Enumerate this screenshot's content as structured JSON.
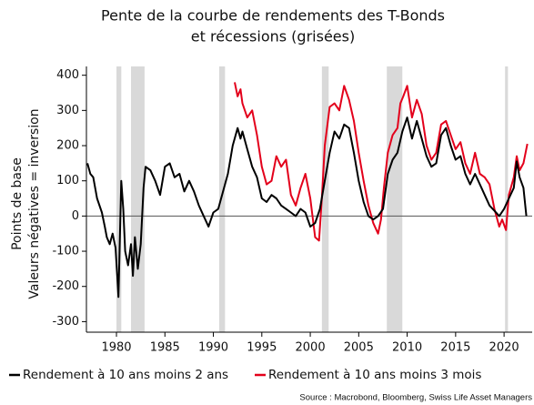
{
  "chart_data": {
    "type": "line",
    "title": [
      "Pente de la courbe de rendements des T-Bonds",
      "et récessions (grisées)"
    ],
    "y_label": [
      "Points de base",
      "Valeurs négatives = inversion"
    ],
    "source": "Source : Macrobond, Bloomberg, Swiss Life Asset Managers",
    "xlim": [
      1976.9,
      2022.9
    ],
    "xticks": [
      1980,
      1985,
      1990,
      1995,
      2000,
      2005,
      2010,
      2015,
      2020
    ],
    "ylim": [
      -330,
      425
    ],
    "yticks": [
      -300,
      -200,
      -100,
      0,
      100,
      200,
      300,
      400
    ],
    "legend": "bottom",
    "grid": false,
    "recessions": [
      [
        1980.0,
        1980.5
      ],
      [
        1981.5,
        1982.9
      ],
      [
        1990.6,
        1991.2
      ],
      [
        2001.2,
        2001.9
      ],
      [
        2007.9,
        2009.5
      ],
      [
        2020.1,
        2020.4
      ]
    ],
    "recession_color": "#d9d9d9",
    "series": [
      {
        "name": "Rendement à 10 ans moins 2 ans",
        "color": "#000000",
        "x": [
          1977,
          1977.3,
          1977.6,
          1978,
          1978.5,
          1978.8,
          1979,
          1979.3,
          1979.6,
          1979.9,
          1980.2,
          1980.5,
          1980.7,
          1980.9,
          1981.2,
          1981.5,
          1981.7,
          1981.9,
          1982.2,
          1982.5,
          1982.8,
          1983,
          1983.5,
          1984,
          1984.5,
          1985,
          1985.5,
          1986,
          1986.5,
          1987,
          1987.5,
          1988,
          1988.5,
          1989,
          1989.5,
          1990,
          1990.5,
          1991,
          1991.5,
          1992,
          1992.5,
          1992.8,
          1993,
          1993.5,
          1994,
          1994.5,
          1995,
          1995.5,
          1996,
          1996.5,
          1997,
          1997.5,
          1998,
          1998.5,
          1999,
          1999.5,
          2000,
          2000.5,
          2001,
          2001.5,
          2002,
          2002.5,
          2003,
          2003.5,
          2004,
          2004.5,
          2005,
          2005.5,
          2006,
          2006.5,
          2007,
          2007.5,
          2008,
          2008.5,
          2009,
          2009.5,
          2010,
          2010.5,
          2011,
          2011.5,
          2012,
          2012.5,
          2013,
          2013.5,
          2014,
          2014.5,
          2015,
          2015.5,
          2016,
          2016.5,
          2017,
          2017.5,
          2018,
          2018.5,
          2019,
          2019.5,
          2020,
          2020.5,
          2021,
          2021.3,
          2021.6,
          2022,
          2022.3
        ],
        "values": [
          150,
          120,
          110,
          50,
          10,
          -30,
          -60,
          -80,
          -50,
          -90,
          -230,
          100,
          20,
          -100,
          -140,
          -80,
          -170,
          -60,
          -150,
          -80,
          80,
          140,
          130,
          100,
          60,
          140,
          150,
          110,
          120,
          70,
          100,
          70,
          30,
          0,
          -30,
          10,
          20,
          70,
          120,
          200,
          250,
          220,
          240,
          190,
          140,
          110,
          50,
          40,
          60,
          50,
          30,
          20,
          10,
          0,
          20,
          10,
          -30,
          -20,
          20,
          100,
          180,
          240,
          220,
          260,
          250,
          180,
          100,
          40,
          0,
          -10,
          0,
          20,
          120,
          160,
          180,
          240,
          280,
          220,
          270,
          220,
          170,
          140,
          150,
          230,
          250,
          200,
          160,
          170,
          120,
          90,
          120,
          90,
          60,
          30,
          15,
          0,
          20,
          50,
          80,
          155,
          110,
          80,
          0
        ]
      },
      {
        "name": "Rendement à 10 ans moins 3 mois",
        "color": "#e3001b",
        "x": [
          1992.2,
          1992.5,
          1992.8,
          1993,
          1993.5,
          1994,
          1994.5,
          1995,
          1995.5,
          1996,
          1996.5,
          1997,
          1997.5,
          1998,
          1998.5,
          1999,
          1999.5,
          2000,
          2000.5,
          2000.9,
          2001.2,
          2001.5,
          2002,
          2002.5,
          2003,
          2003.5,
          2004,
          2004.5,
          2005,
          2005.5,
          2006,
          2006.5,
          2007,
          2007.3,
          2007.6,
          2008,
          2008.5,
          2009,
          2009.3,
          2009.6,
          2010,
          2010.5,
          2011,
          2011.5,
          2012,
          2012.5,
          2013,
          2013.5,
          2014,
          2014.5,
          2015,
          2015.5,
          2016,
          2016.5,
          2017,
          2017.5,
          2018,
          2018.5,
          2019,
          2019.5,
          2019.8,
          2020.2,
          2020.5,
          2021,
          2021.3,
          2021.6,
          2022,
          2022.4
        ],
        "values": [
          380,
          340,
          360,
          320,
          280,
          300,
          230,
          140,
          90,
          100,
          170,
          140,
          160,
          60,
          30,
          80,
          120,
          50,
          -60,
          -70,
          50,
          200,
          310,
          320,
          300,
          370,
          330,
          270,
          180,
          100,
          30,
          -20,
          -50,
          -10,
          80,
          180,
          230,
          250,
          320,
          340,
          370,
          280,
          330,
          290,
          200,
          160,
          180,
          260,
          270,
          230,
          190,
          210,
          150,
          120,
          180,
          120,
          110,
          90,
          20,
          -30,
          -10,
          -40,
          60,
          110,
          170,
          130,
          150,
          205
        ]
      }
    ]
  }
}
